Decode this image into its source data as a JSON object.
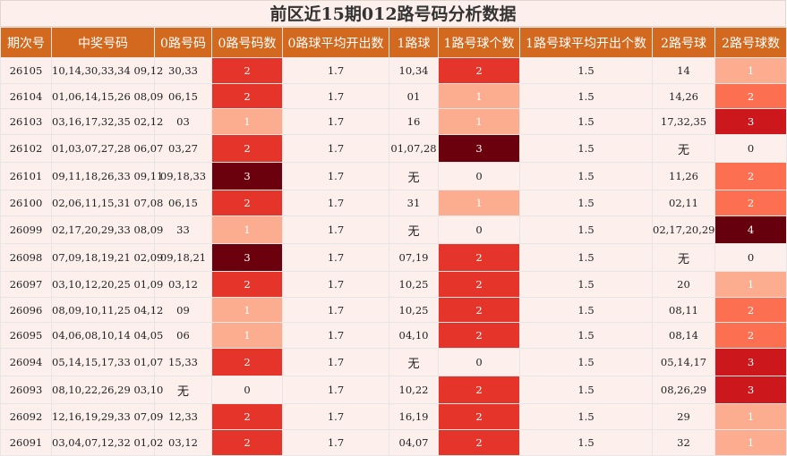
{
  "title": "前区近15期012路号码分析数据",
  "headers": [
    "期次号",
    "中奖号码",
    "0路号码",
    "0路号码数",
    "0路球平均开出数",
    "1路球",
    "1路号球个数",
    "1路号球平均开出个数",
    "2路号球",
    "2路号球数"
  ],
  "rows": [
    {
      "issue": "26105",
      "numbers": "10,14,30,33,34 09,12",
      "r0": "30,33",
      "r0n": "2",
      "r0avg": "1.7",
      "r1": "10,34",
      "r1n": "2",
      "r1avg": "1.5",
      "r2": "14",
      "r2n": "1"
    },
    {
      "issue": "26104",
      "numbers": "01,06,14,15,26 08,09",
      "r0": "06,15",
      "r0n": "2",
      "r0avg": "1.7",
      "r1": "01",
      "r1n": "1",
      "r1avg": "1.5",
      "r2": "14,26",
      "r2n": "2"
    },
    {
      "issue": "26103",
      "numbers": "03,16,17,32,35 02,12",
      "r0": "03",
      "r0n": "1",
      "r0avg": "1.7",
      "r1": "16",
      "r1n": "1",
      "r1avg": "1.5",
      "r2": "17,32,35",
      "r2n": "3"
    },
    {
      "issue": "26102",
      "numbers": "01,03,07,27,28 06,07",
      "r0": "03,27",
      "r0n": "2",
      "r0avg": "1.7",
      "r1": "01,07,28",
      "r1n": "3",
      "r1avg": "1.5",
      "r2": "无",
      "r2n": "0"
    },
    {
      "issue": "26101",
      "numbers": "09,11,18,26,33 09,11",
      "r0": "09,18,33",
      "r0n": "3",
      "r0avg": "1.7",
      "r1": "无",
      "r1n": "0",
      "r1avg": "1.5",
      "r2": "11,26",
      "r2n": "2"
    },
    {
      "issue": "26100",
      "numbers": "02,06,11,15,31 07,08",
      "r0": "06,15",
      "r0n": "2",
      "r0avg": "1.7",
      "r1": "31",
      "r1n": "1",
      "r1avg": "1.5",
      "r2": "02,11",
      "r2n": "2"
    },
    {
      "issue": "26099",
      "numbers": "02,17,20,29,33 08,09",
      "r0": "33",
      "r0n": "1",
      "r0avg": "1.7",
      "r1": "无",
      "r1n": "0",
      "r1avg": "1.5",
      "r2": "02,17,20,29",
      "r2n": "4"
    },
    {
      "issue": "26098",
      "numbers": "07,09,18,19,21 02,09",
      "r0": "09,18,21",
      "r0n": "3",
      "r0avg": "1.7",
      "r1": "07,19",
      "r1n": "2",
      "r1avg": "1.5",
      "r2": "无",
      "r2n": "0"
    },
    {
      "issue": "26097",
      "numbers": "03,10,12,20,25 01,09",
      "r0": "03,12",
      "r0n": "2",
      "r0avg": "1.7",
      "r1": "10,25",
      "r1n": "2",
      "r1avg": "1.5",
      "r2": "20",
      "r2n": "1"
    },
    {
      "issue": "26096",
      "numbers": "08,09,10,11,25 04,12",
      "r0": "09",
      "r0n": "1",
      "r0avg": "1.7",
      "r1": "10,25",
      "r1n": "2",
      "r1avg": "1.5",
      "r2": "08,11",
      "r2n": "2"
    },
    {
      "issue": "26095",
      "numbers": "04,06,08,10,14 04,05",
      "r0": "06",
      "r0n": "1",
      "r0avg": "1.7",
      "r1": "04,10",
      "r1n": "2",
      "r1avg": "1.5",
      "r2": "08,14",
      "r2n": "2"
    },
    {
      "issue": "26094",
      "numbers": "05,14,15,17,33 01,07",
      "r0": "15,33",
      "r0n": "2",
      "r0avg": "1.7",
      "r1": "无",
      "r1n": "0",
      "r1avg": "1.5",
      "r2": "05,14,17",
      "r2n": "3"
    },
    {
      "issue": "26093",
      "numbers": "08,10,22,26,29 03,10",
      "r0": "无",
      "r0n": "0",
      "r0avg": "1.7",
      "r1": "10,22",
      "r1n": "2",
      "r1avg": "1.5",
      "r2": "08,26,29",
      "r2n": "3"
    },
    {
      "issue": "26092",
      "numbers": "12,16,19,29,33 07,09",
      "r0": "12,33",
      "r0n": "2",
      "r0avg": "1.7",
      "r1": "16,19",
      "r1n": "2",
      "r1avg": "1.5",
      "r2": "29",
      "r2n": "1"
    },
    {
      "issue": "26091",
      "numbers": "03,04,07,12,32 01,02",
      "r0": "03,12",
      "r0n": "2",
      "r0avg": "1.7",
      "r1": "04,07",
      "r1n": "2",
      "r1avg": "1.5",
      "r2": "32",
      "r2n": "1"
    }
  ]
}
